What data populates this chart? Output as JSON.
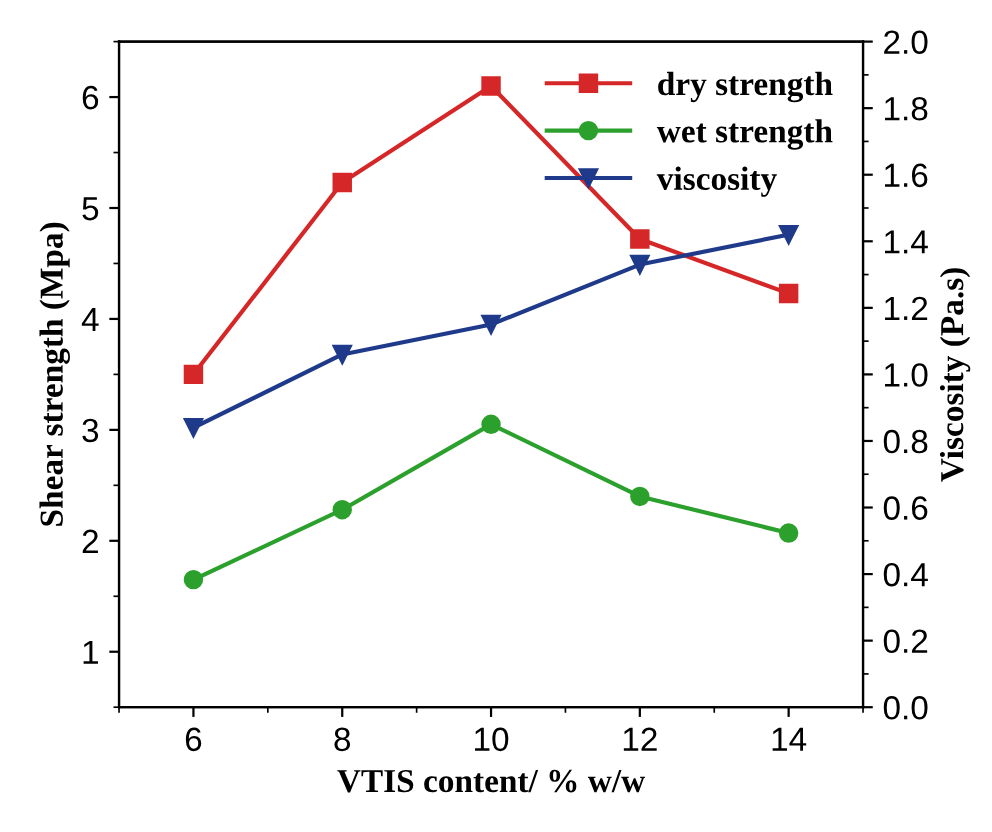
{
  "chart_data": {
    "type": "line",
    "xlabel": "VTIS content/ % w/w",
    "ylabel": "Shear strength (Mpa)",
    "y2label": "Viscosity (Pa.s)",
    "x": [
      6,
      8,
      10,
      12,
      14
    ],
    "series": [
      {
        "name": "dry strength",
        "color": "#d62728",
        "marker": "square",
        "values": [
          3.5,
          5.23,
          6.1,
          4.72,
          4.23
        ]
      },
      {
        "name": "wet strength",
        "color": "#2ca02c",
        "marker": "circle",
        "values": [
          1.65,
          2.28,
          3.05,
          2.4,
          2.07
        ]
      },
      {
        "name": "viscosity",
        "color": "#1f3a8a",
        "marker": "triangle",
        "axis": "y2",
        "values": [
          0.84,
          1.06,
          1.15,
          1.33,
          1.42
        ]
      }
    ],
    "xlim": [
      5,
      15
    ],
    "xticks": [
      6,
      8,
      10,
      12,
      14
    ],
    "ylim": [
      0.5,
      6.5
    ],
    "yticks": [
      1,
      2,
      3,
      4,
      5,
      6
    ],
    "y2lim": [
      0,
      2.0
    ],
    "y2ticks": [
      {
        "value": 0,
        "label": "0.0"
      },
      {
        "value": 0.2,
        "label": "0.2"
      },
      {
        "value": 0.4,
        "label": "0.4"
      },
      {
        "value": 0.6,
        "label": "0.6"
      },
      {
        "value": 0.8,
        "label": "0.8"
      },
      {
        "value": 1.0,
        "label": "1.0"
      },
      {
        "value": 1.2,
        "label": "1.2"
      },
      {
        "value": 1.4,
        "label": "1.4"
      },
      {
        "value": 1.6,
        "label": "1.6"
      },
      {
        "value": 1.8,
        "label": "1.8"
      },
      {
        "value": 2.0,
        "label": "2.0"
      }
    ],
    "grid": false,
    "legend": "top right",
    "line_style": "solid"
  }
}
